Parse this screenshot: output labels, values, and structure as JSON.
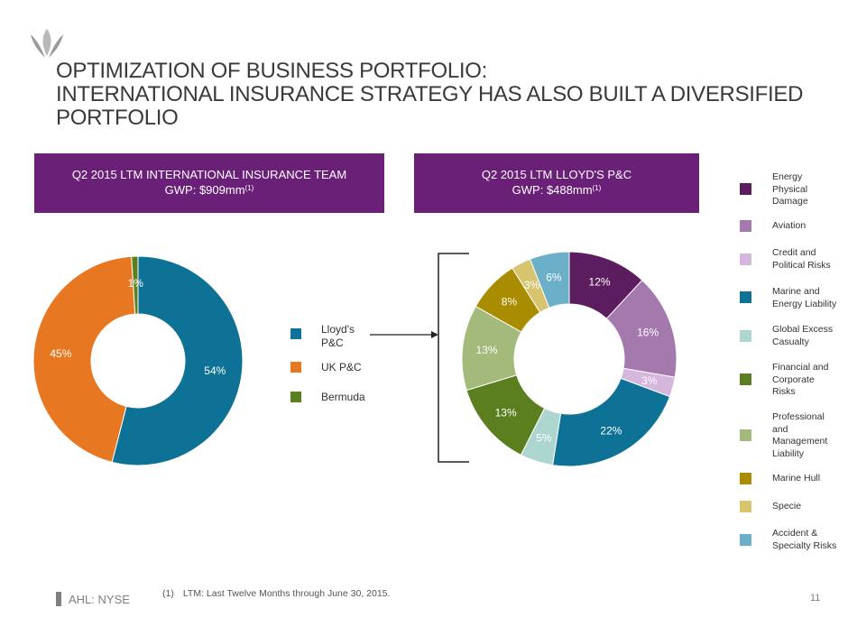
{
  "title_lines": [
    "OPTIMIZATION OF BUSINESS PORTFOLIO:",
    "INTERNATIONAL INSURANCE STRATEGY HAS ALSO BUILT A DIVERSIFIED",
    "PORTFOLIO"
  ],
  "left_box": {
    "line1": "Q2 2015  LTM INTERNATIONAL INSURANCE TEAM",
    "line2": "GWP:  $909mm",
    "sup": "(1)"
  },
  "right_box": {
    "line1": "Q2 2015 LTM LLOYD'S P&C",
    "line2": "GWP:  $488mm",
    "sup": "(1)"
  },
  "left_legend": [
    {
      "label": "Lloyd's P&C",
      "color": "#0e7196"
    },
    {
      "label": "UK P&C",
      "color": "#e87722"
    },
    {
      "label": "Bermuda",
      "color": "#5b7f1f"
    }
  ],
  "right_legend": [
    {
      "label": "Energy Physical Damage",
      "color": "#5c1d5e"
    },
    {
      "label": "Aviation",
      "color": "#a47aae"
    },
    {
      "label": "Credit and Political Risks",
      "color": "#d5b7de"
    },
    {
      "label": "Marine and Energy Liability",
      "color": "#0e7196"
    },
    {
      "label": "Global Excess Casualty",
      "color": "#aed6d0"
    },
    {
      "label": "Financial and Corporate Risks",
      "color": "#5b7f1f"
    },
    {
      "label": "Professional and Management Liability",
      "color": "#a3ba7a"
    },
    {
      "label": "Marine Hull",
      "color": "#a98c00"
    },
    {
      "label": "Specie",
      "color": "#d6c46f"
    },
    {
      "label": "Accident & Specialty Risks",
      "color": "#6bafc8"
    }
  ],
  "chart_data": [
    {
      "type": "pie",
      "title": "Q2 2015  LTM INTERNATIONAL INSURANCE TEAM GWP: $909mm",
      "categories": [
        "Lloyd's P&C",
        "UK P&C",
        "Bermuda"
      ],
      "values": [
        54,
        45,
        1
      ],
      "labels": [
        "54%",
        "45%",
        "1%"
      ],
      "colors": [
        "#0e7196",
        "#e87722",
        "#5b7f1f"
      ]
    },
    {
      "type": "pie",
      "title": "Q2 2015 LTM LLOYD'S P&C GWP: $488mm",
      "categories": [
        "Energy Physical Damage",
        "Aviation",
        "Credit and Political Risks",
        "Marine and Energy Liability",
        "Global Excess Casualty",
        "Financial and Corporate Risks",
        "Professional and Management Liability",
        "Marine Hull",
        "Specie",
        "Accident & Specialty Risks"
      ],
      "values": [
        12,
        16,
        3,
        22,
        5,
        13,
        13,
        8,
        3,
        6
      ],
      "labels": [
        "12%",
        "16%",
        "3%",
        "22%",
        "5%",
        "13%",
        "13%",
        "8%",
        "3%",
        "6%"
      ],
      "colors": [
        "#5c1d5e",
        "#a47aae",
        "#d5b7de",
        "#0e7196",
        "#aed6d0",
        "#5b7f1f",
        "#a3ba7a",
        "#a98c00",
        "#d6c46f",
        "#6bafc8"
      ]
    }
  ],
  "footer": {
    "ticker": "AHL: NYSE",
    "footnote_num": "(1)",
    "footnote_text": "LTM: Last Twelve Months through June 30, 2015.",
    "page": "11"
  }
}
